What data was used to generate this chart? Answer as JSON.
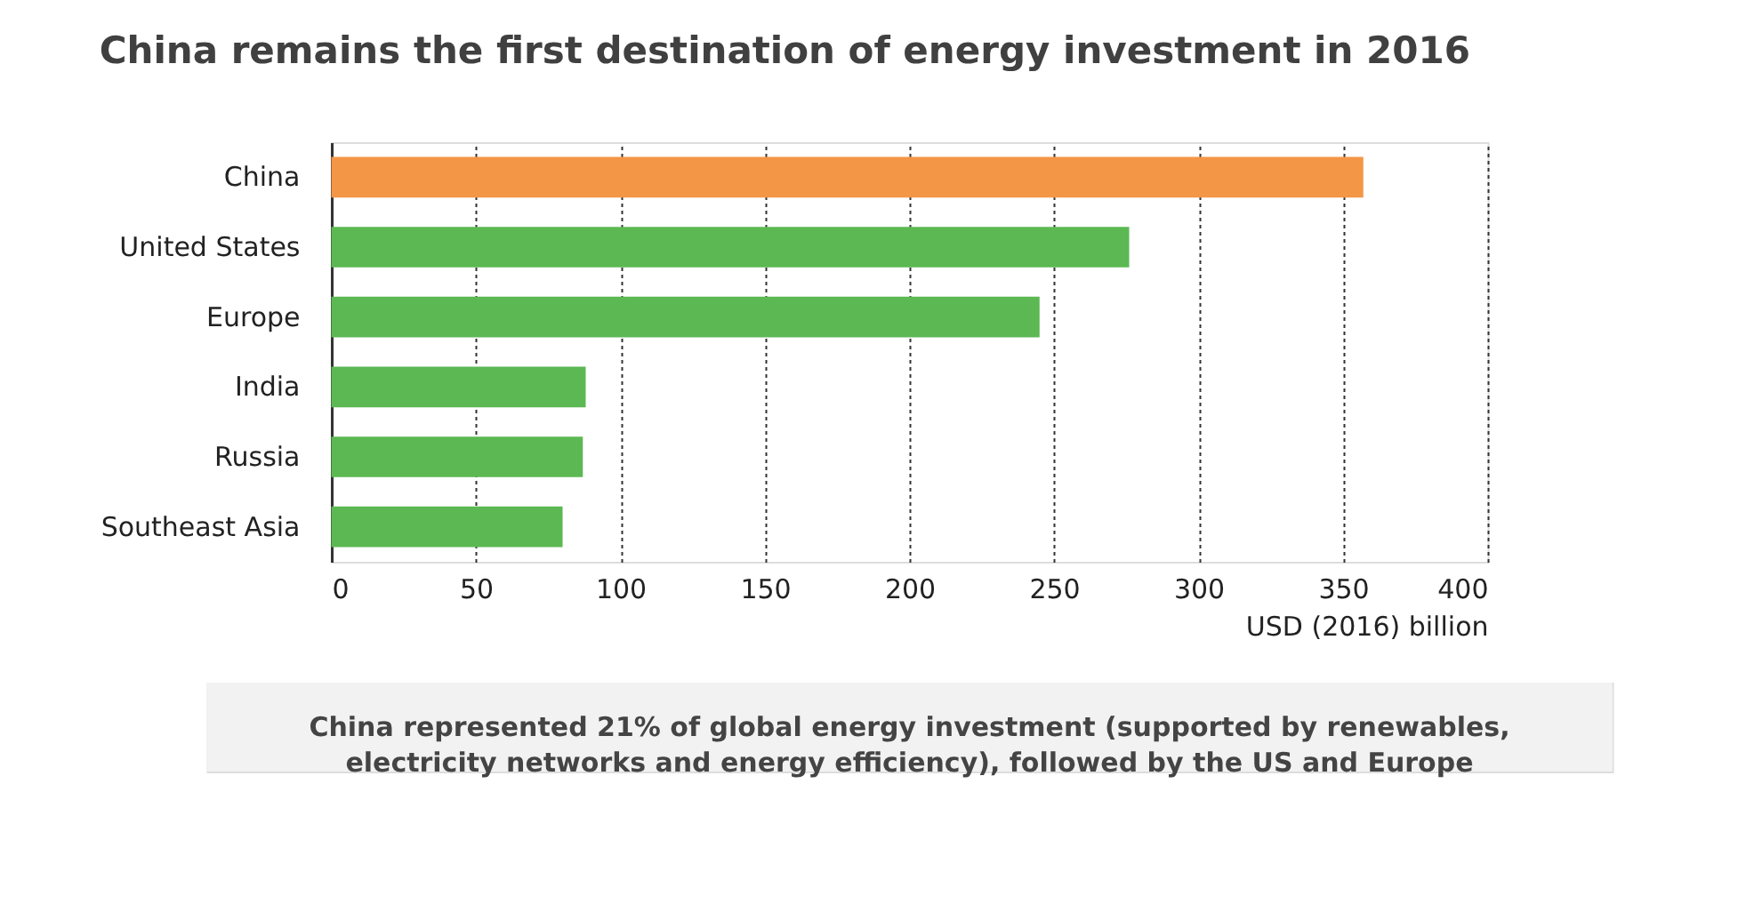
{
  "chart_data": {
    "type": "bar",
    "orientation": "horizontal",
    "title": "China remains the first destination of energy investment in 2016",
    "categories": [
      "China",
      "United States",
      "Europe",
      "India",
      "Russia",
      "Southeast Asia"
    ],
    "values": [
      357,
      276,
      245,
      88,
      87,
      80
    ],
    "colors": [
      "#f39646",
      "#5cb853",
      "#5cb853",
      "#5cb853",
      "#5cb853",
      "#5cb853"
    ],
    "xlim": [
      0,
      400
    ],
    "xticks": [
      0,
      50,
      100,
      150,
      200,
      250,
      300,
      350,
      400
    ],
    "grid": "x",
    "xlabel": "USD (2016) billion",
    "annotations": [
      "China represented 21% of global energy investment (supported by renewables, electricity networks and energy efficiency), followed by the US and Europe"
    ]
  }
}
